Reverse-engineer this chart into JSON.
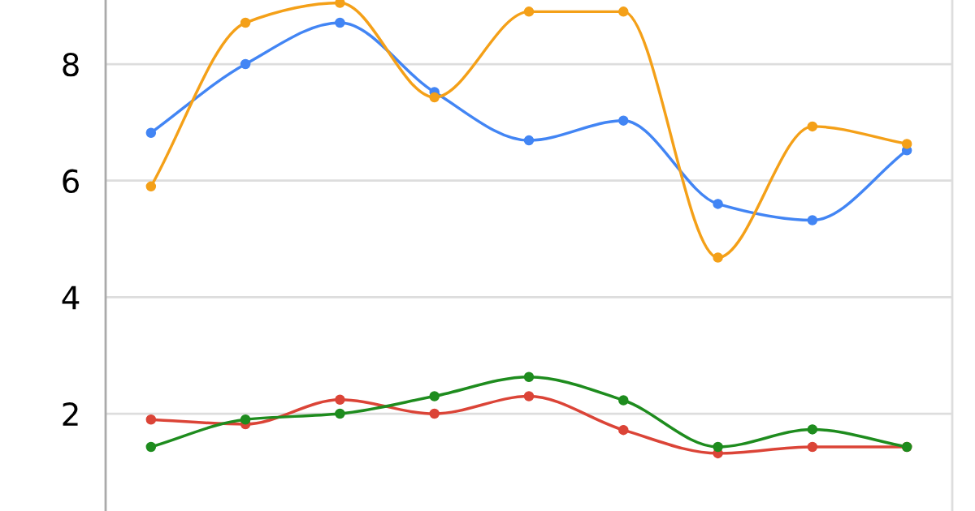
{
  "chart_data": {
    "type": "line",
    "categories": [
      null,
      null,
      null,
      null,
      null,
      null,
      null,
      null,
      null
    ],
    "ylim": [
      0.33,
      9.1
    ],
    "yticks": [
      2,
      4,
      6,
      8
    ],
    "tick_labels": "y",
    "grid": "y",
    "marker": "circle",
    "line_style": "solid",
    "series": [
      {
        "color": "#4285f4",
        "values": [
          6.82,
          8.0,
          8.71,
          7.52,
          6.69,
          7.03,
          5.6,
          5.32,
          6.52
        ]
      },
      {
        "color": "#f4a018",
        "values": [
          5.9,
          8.71,
          9.05,
          7.43,
          8.9,
          8.9,
          4.68,
          6.93,
          6.63
        ]
      },
      {
        "color": "#db4437",
        "values": [
          1.9,
          1.82,
          2.24,
          2.0,
          2.3,
          1.72,
          1.32,
          1.43,
          1.43
        ]
      },
      {
        "color": "#1e8c1e",
        "values": [
          1.43,
          1.9,
          2.0,
          2.3,
          2.63,
          2.23,
          1.43,
          1.73,
          1.43
        ]
      }
    ]
  }
}
